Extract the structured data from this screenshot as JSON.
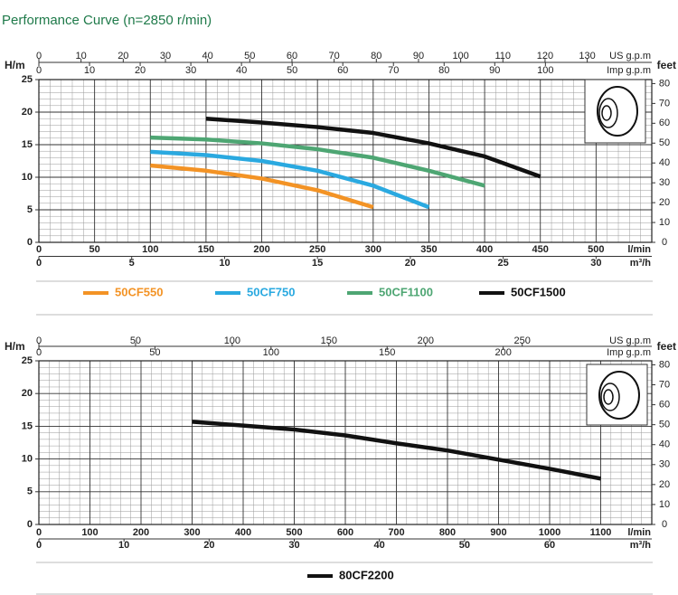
{
  "title": "Performance Curve (n=2850 r/min)",
  "chart_data": [
    {
      "type": "line",
      "ylabel": "H/m",
      "y2label": "feet",
      "xlabel": "l/min",
      "x": [
        100,
        150,
        200,
        250,
        300,
        350,
        400,
        450
      ],
      "series": [
        {
          "name": "50CF550",
          "color": "#f39325",
          "values": [
            11.8,
            11.0,
            9.8,
            8.0,
            5.4,
            null,
            null,
            null
          ]
        },
        {
          "name": "50CF750",
          "color": "#2aa9e0",
          "values": [
            13.9,
            13.4,
            12.5,
            11.0,
            8.7,
            5.4,
            null,
            null
          ]
        },
        {
          "name": "50CF1100",
          "color": "#4ea673",
          "values": [
            16.1,
            15.8,
            15.2,
            14.3,
            13.0,
            11.0,
            8.7,
            null
          ]
        },
        {
          "name": "50CF1500",
          "color": "#111111",
          "values": [
            null,
            19.0,
            18.4,
            17.7,
            16.8,
            15.2,
            13.2,
            10.1
          ]
        }
      ],
      "xlim": [
        0,
        550
      ],
      "xticks": [
        0,
        50,
        100,
        150,
        200,
        250,
        300,
        350,
        400,
        450,
        500
      ],
      "ylim": [
        0,
        25
      ],
      "yticks": [
        0,
        5,
        10,
        15,
        20,
        25
      ],
      "y2lim": [
        0,
        82.02
      ],
      "y2ticks": [
        0,
        10,
        20,
        30,
        40,
        50,
        60,
        70,
        80
      ],
      "top_axes": [
        {
          "label": "US g.p.m",
          "lim": [
            0,
            145.3
          ],
          "ticks": [
            0,
            10,
            20,
            30,
            40,
            50,
            60,
            70,
            80,
            90,
            100,
            110,
            120,
            130
          ]
        },
        {
          "label": "Imp g.p.m",
          "lim": [
            0,
            121.0
          ],
          "ticks": [
            0,
            10,
            20,
            30,
            40,
            50,
            60,
            70,
            80,
            90,
            100
          ]
        }
      ],
      "bottom_axis": {
        "label": "m³/h",
        "lim": [
          0,
          33
        ],
        "ticks": [
          0,
          5,
          10,
          15,
          20,
          25,
          30
        ]
      },
      "grid": true
    },
    {
      "type": "line",
      "ylabel": "H/m",
      "y2label": "feet",
      "xlabel": "l/min",
      "x": [
        300,
        400,
        500,
        600,
        700,
        800,
        900,
        1000,
        1100
      ],
      "series": [
        {
          "name": "80CF2200",
          "color": "#111111",
          "values": [
            15.7,
            15.1,
            14.5,
            13.6,
            12.4,
            11.3,
            9.9,
            8.5,
            7.0
          ]
        }
      ],
      "xlim": [
        0,
        1200
      ],
      "xticks": [
        0,
        100,
        200,
        300,
        400,
        500,
        600,
        700,
        800,
        900,
        1000,
        1100
      ],
      "ylim": [
        0,
        25
      ],
      "yticks": [
        0,
        5,
        10,
        15,
        20,
        25
      ],
      "y2lim": [
        0,
        82.02
      ],
      "y2ticks": [
        0,
        10,
        20,
        30,
        40,
        50,
        60,
        70,
        80
      ],
      "top_axes": [
        {
          "label": "US g.p.m",
          "lim": [
            0,
            317.0
          ],
          "ticks": [
            0,
            50,
            100,
            150,
            200,
            250
          ]
        },
        {
          "label": "Imp g.p.m",
          "lim": [
            0,
            264.0
          ],
          "ticks": [
            0,
            50,
            100,
            150,
            200
          ]
        }
      ],
      "bottom_axis": {
        "label": "m³/h",
        "lim": [
          0,
          72
        ],
        "ticks": [
          0,
          10,
          20,
          30,
          40,
          50,
          60
        ]
      },
      "grid": true
    }
  ]
}
